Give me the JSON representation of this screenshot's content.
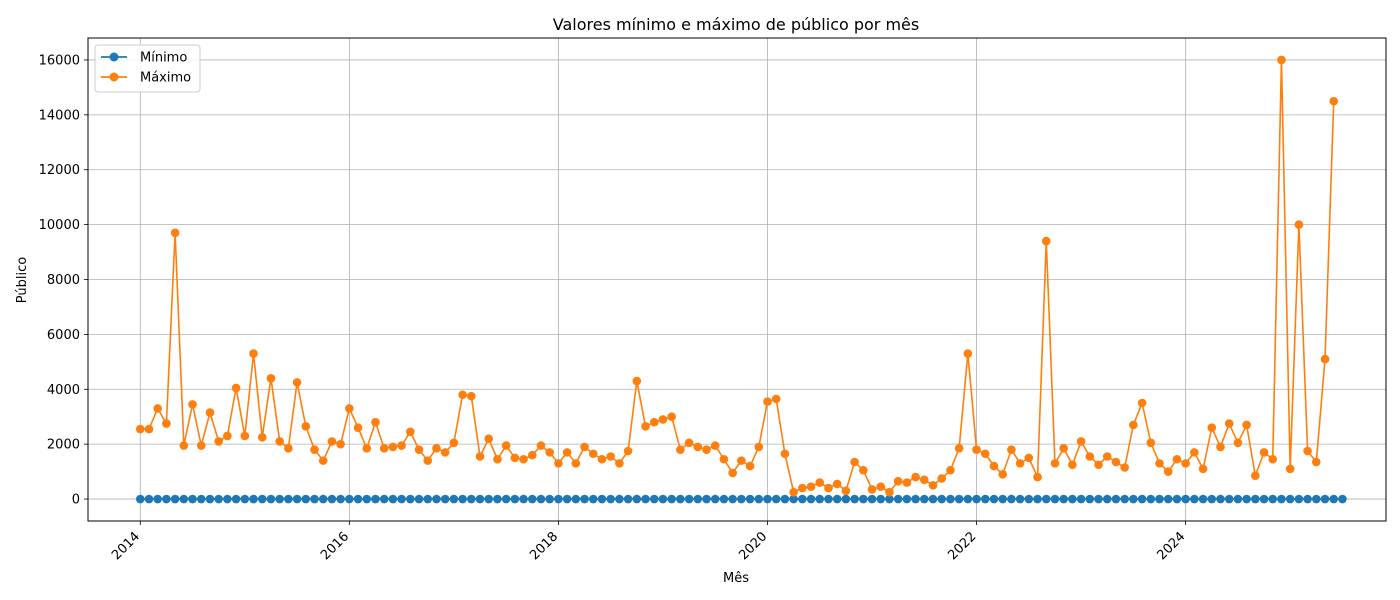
{
  "chart_data": {
    "type": "line",
    "title": "Valores mínimo e máximo de público por mês",
    "xlabel": "Mês",
    "ylabel": "Público",
    "x_start": "2014-01",
    "x_end": "2025-06",
    "xlim": [
      "2013-07",
      "2025-12"
    ],
    "ylim": [
      -800,
      16800
    ],
    "x_ticks": [
      "2014",
      "2016",
      "2018",
      "2020",
      "2022",
      "2024"
    ],
    "y_ticks": [
      0,
      2000,
      4000,
      6000,
      8000,
      10000,
      12000,
      14000,
      16000
    ],
    "grid": true,
    "legend": "upper-left",
    "series": [
      {
        "name": "Mínimo",
        "color": "#1f77b4",
        "values": [
          0,
          0,
          0,
          0,
          0,
          0,
          0,
          0,
          0,
          0,
          0,
          0,
          0,
          0,
          0,
          0,
          0,
          0,
          0,
          0,
          0,
          0,
          0,
          0,
          0,
          0,
          0,
          0,
          0,
          0,
          0,
          0,
          0,
          0,
          0,
          0,
          0,
          0,
          0,
          0,
          0,
          0,
          0,
          0,
          0,
          0,
          0,
          0,
          0,
          0,
          0,
          0,
          0,
          0,
          0,
          0,
          0,
          0,
          0,
          0,
          0,
          0,
          0,
          0,
          0,
          0,
          0,
          0,
          0,
          0,
          0,
          0,
          0,
          0,
          0,
          0,
          0,
          0,
          0,
          0,
          0,
          0,
          0,
          0,
          0,
          0,
          0,
          0,
          0,
          0,
          0,
          0,
          0,
          0,
          0,
          0,
          0,
          0,
          0,
          0,
          0,
          0,
          0,
          0,
          0,
          0,
          0,
          0,
          0,
          0,
          0,
          0,
          0,
          0,
          0,
          0,
          0,
          0,
          0,
          0,
          0,
          0,
          0,
          0,
          0,
          0,
          0,
          0,
          0,
          0,
          0,
          0,
          0,
          0,
          0,
          0,
          0,
          0,
          0
        ]
      },
      {
        "name": "Máximo",
        "color": "#ff7f0e",
        "values": [
          2550,
          2550,
          3300,
          2750,
          9700,
          1950,
          3450,
          1950,
          3150,
          2100,
          2300,
          4050,
          2300,
          5300,
          2250,
          4400,
          2100,
          1850,
          4250,
          2650,
          1800,
          1400,
          2100,
          2000,
          3300,
          2600,
          1850,
          2800,
          1850,
          1900,
          1950,
          2450,
          1800,
          1400,
          1850,
          1700,
          2050,
          3800,
          3750,
          1550,
          2200,
          1450,
          1950,
          1500,
          1450,
          1600,
          1950,
          1700,
          1300,
          1700,
          1300,
          1900,
          1650,
          1450,
          1550,
          1300,
          1750,
          4300,
          2650,
          2800,
          2900,
          3000,
          1800,
          2050,
          1900,
          1800,
          1950,
          1450,
          950,
          1400,
          1200,
          1900,
          3550,
          3650,
          1650,
          250,
          400,
          450,
          600,
          400,
          550,
          300,
          1350,
          1050,
          350,
          450,
          250,
          650,
          600,
          800,
          700,
          500,
          750,
          1050,
          1850,
          5300,
          1800,
          1650,
          1200,
          900,
          1800,
          1300,
          1500,
          800,
          9400,
          1300,
          1850,
          1250,
          2100,
          1550,
          1250,
          1550,
          1350,
          1150,
          2700,
          3500,
          2050,
          1300,
          1000,
          1450,
          1300,
          1700,
          1100,
          2600,
          1900,
          2750,
          2050,
          2700,
          850,
          1700,
          1450,
          16000,
          1100,
          10000,
          1750,
          1350,
          5100,
          14500
        ]
      }
    ]
  }
}
